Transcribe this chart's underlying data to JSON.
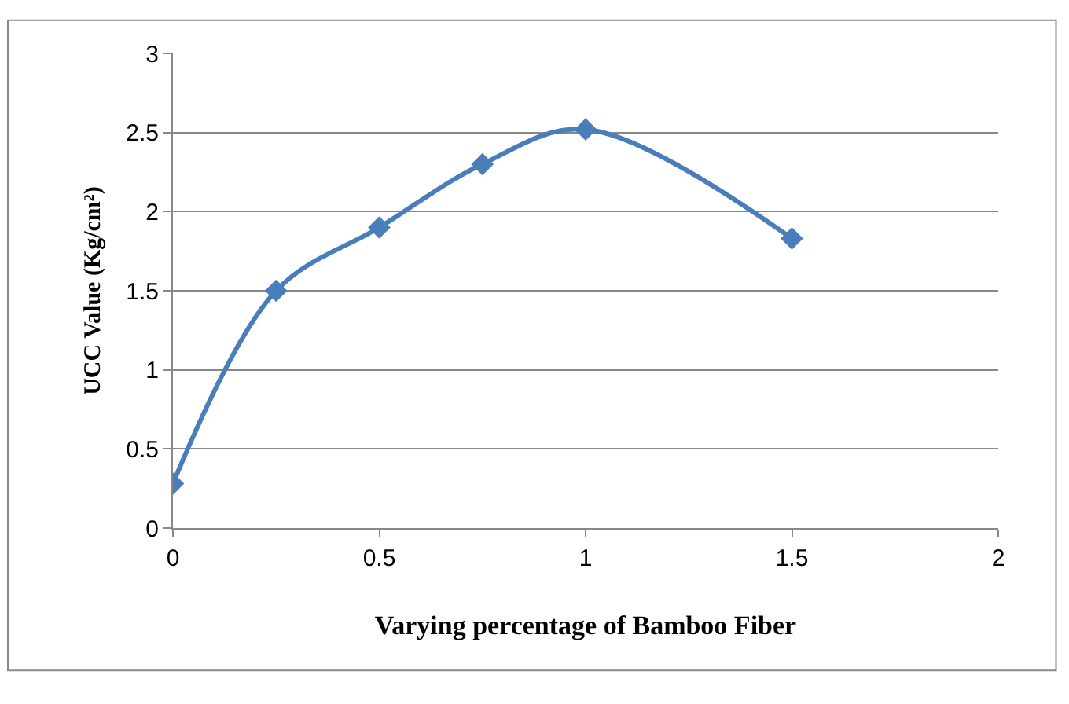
{
  "chart_data": {
    "type": "line",
    "xlabel": "Varying percentage of Bamboo Fiber",
    "ylabel": "UCC Value (Kg/cm²)",
    "x": [
      0,
      0.25,
      0.5,
      0.75,
      1,
      1.5
    ],
    "series": [
      {
        "color": "#4a7ebb",
        "values": [
          0.28,
          1.5,
          1.9,
          2.3,
          2.52,
          1.83
        ]
      }
    ],
    "xlim": [
      0,
      2
    ],
    "xticks": [
      0,
      0.5,
      1,
      1.5,
      2
    ],
    "ylim": [
      0,
      3
    ],
    "yticks": [
      0,
      0.5,
      1,
      1.5,
      2,
      2.5,
      3
    ],
    "grid": "y",
    "marker": "diamond",
    "line_style": "solid"
  }
}
